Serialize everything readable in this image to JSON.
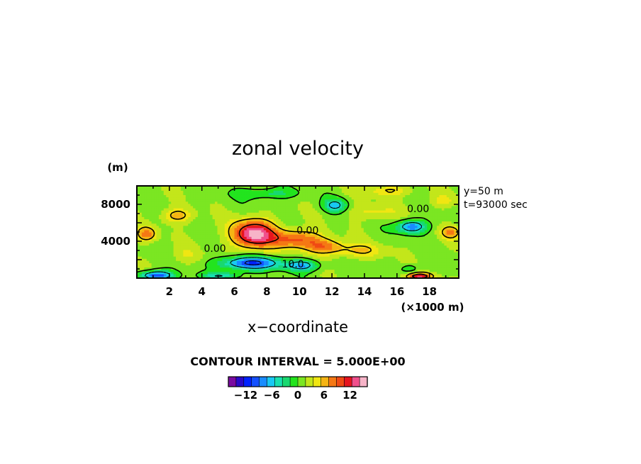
{
  "chart_data": {
    "type": "heatmap",
    "title": "zonal velocity",
    "xlabel": "x−coordinate",
    "x_unit": "(×1000 m)",
    "y_unit": "(m)",
    "xlim": [
      0,
      19.8
    ],
    "ylim": [
      0,
      10000
    ],
    "x_ticks": [
      2,
      4,
      6,
      8,
      10,
      12,
      14,
      16,
      18
    ],
    "y_ticks": [
      4000,
      8000
    ],
    "info": [
      "y=50 m",
      "t=93000 sec"
    ],
    "contour_interval_text": "CONTOUR INTERVAL = 5.000E+00",
    "contour_labels": [
      {
        "text": "0.00",
        "x": 17.3,
        "y": 7150
      },
      {
        "text": "0.00",
        "x": 10.5,
        "y": 4800
      },
      {
        "text": "0.00",
        "x": 4.8,
        "y": 2850
      },
      {
        "text": "10.0",
        "x": 9.6,
        "y": 1150
      }
    ],
    "colorbar": {
      "ticks": [
        "−12",
        "−6",
        "0",
        "6",
        "12"
      ],
      "tick_values": [
        -12,
        -6,
        0,
        6,
        12
      ],
      "range": [
        -16,
        16
      ],
      "colors": [
        "#7a0aa0",
        "#2a08c8",
        "#0022ff",
        "#1450ff",
        "#1a8cff",
        "#19c8f4",
        "#18e0b0",
        "#18d870",
        "#22e41e",
        "#7be622",
        "#c3e61a",
        "#f0e612",
        "#f5b414",
        "#f57814",
        "#f04a14",
        "#e6141e",
        "#f0508c",
        "#f7b4c8"
      ]
    },
    "features": [
      {
        "x": 7.2,
        "y": 4800,
        "sx": 1.3,
        "sy": 1500,
        "amp": 14
      },
      {
        "x": 9.8,
        "y": 4300,
        "sx": 1.5,
        "sy": 1000,
        "amp": 8
      },
      {
        "x": 11.5,
        "y": 3500,
        "sx": 1.2,
        "sy": 800,
        "amp": 6
      },
      {
        "x": 13.5,
        "y": 3000,
        "sx": 1.8,
        "sy": 800,
        "amp": 4
      },
      {
        "x": 7.0,
        "y": 1650,
        "sx": 1.8,
        "sy": 700,
        "amp": -12
      },
      {
        "x": 10.2,
        "y": 1400,
        "sx": 1.0,
        "sy": 600,
        "amp": -8
      },
      {
        "x": 1.2,
        "y": 300,
        "sx": 1.0,
        "sy": 500,
        "amp": -12
      },
      {
        "x": 5.2,
        "y": 300,
        "sx": 1.2,
        "sy": 400,
        "amp": -6
      },
      {
        "x": 12.2,
        "y": 7900,
        "sx": 0.7,
        "sy": 700,
        "amp": -7
      },
      {
        "x": 16.9,
        "y": 5600,
        "sx": 0.9,
        "sy": 700,
        "amp": -10
      },
      {
        "x": 16.8,
        "y": 1000,
        "sx": 0.5,
        "sy": 500,
        "amp": -4
      },
      {
        "x": 17.4,
        "y": 200,
        "sx": 0.8,
        "sy": 400,
        "amp": 12
      },
      {
        "x": 0.6,
        "y": 4800,
        "sx": 0.6,
        "sy": 800,
        "amp": 7
      },
      {
        "x": 19.3,
        "y": 5000,
        "sx": 0.6,
        "sy": 700,
        "amp": 6
      },
      {
        "x": 8.0,
        "y": 9200,
        "sx": 1.8,
        "sy": 600,
        "amp": -4
      },
      {
        "x": 14.5,
        "y": 7200,
        "sx": 1.5,
        "sy": 900,
        "amp": 3
      },
      {
        "x": 2.5,
        "y": 6800,
        "sx": 1.0,
        "sy": 800,
        "amp": 5
      },
      {
        "x": 15.5,
        "y": 9500,
        "sx": 1.5,
        "sy": 600,
        "amp": 4
      },
      {
        "x": 3.0,
        "y": 2500,
        "sx": 1.0,
        "sy": 900,
        "amp": 2
      },
      {
        "x": 18.8,
        "y": 8400,
        "sx": 0.8,
        "sy": 700,
        "amp": 3
      }
    ]
  }
}
